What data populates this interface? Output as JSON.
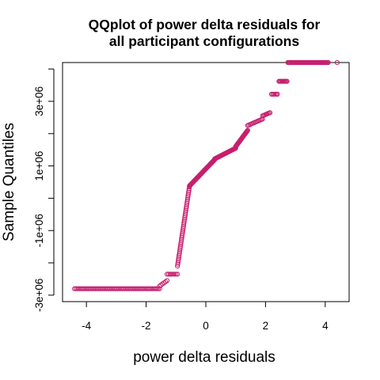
{
  "chart_data": {
    "type": "scatter",
    "title_line1": "QQplot of power delta residuals for",
    "title_line2": "all participant configurations",
    "xlabel": "power delta residuals",
    "ylabel": "Sample Quantiles",
    "xlim": [
      -4.8,
      4.8
    ],
    "ylim": [
      -3200000.0,
      4200000.0
    ],
    "x_ticks": [
      {
        "value": -4,
        "label": "-4"
      },
      {
        "value": -2,
        "label": "-2"
      },
      {
        "value": 0,
        "label": "0"
      },
      {
        "value": 2,
        "label": "2"
      },
      {
        "value": 4,
        "label": "4"
      }
    ],
    "y_ticks": [
      {
        "value": -3000000,
        "label": "-3e+06"
      },
      {
        "value": -1000000,
        "label": "-1e+06"
      },
      {
        "value": 1000000,
        "label": "1e+06"
      },
      {
        "value": 3000000,
        "label": "3e+06"
      }
    ],
    "y_minor_ticks": [
      -2000000,
      0,
      2000000,
      4000000
    ],
    "grid": false,
    "legend": "none",
    "marker": "open-circle",
    "point_color": "#c71f6e",
    "segments": [
      {
        "x_start": -4.4,
        "x_end": -1.55,
        "y_start": -2800000.0,
        "y_end": -2800000.0,
        "n": 60
      },
      {
        "x_start": -1.55,
        "x_end": -1.3,
        "y_start": -2720000.0,
        "y_end": -2550000.0,
        "n": 6
      },
      {
        "x_start": -1.3,
        "x_end": -0.95,
        "y_start": -2350000.0,
        "y_end": -2350000.0,
        "n": 8
      },
      {
        "x_start": -0.95,
        "x_end": -0.55,
        "y_start": -2100000.0,
        "y_end": 350000.0,
        "n": 45
      },
      {
        "x_start": -0.55,
        "x_end": 0.3,
        "y_start": 380000.0,
        "y_end": 1200000.0,
        "n": 60
      },
      {
        "x_start": 0.3,
        "x_end": 1.0,
        "y_start": 1220000.0,
        "y_end": 1550000.0,
        "n": 40
      },
      {
        "x_start": 1.0,
        "x_end": 1.4,
        "y_start": 1600000.0,
        "y_end": 2100000.0,
        "n": 30
      },
      {
        "x_start": 1.4,
        "x_end": 1.9,
        "y_start": 2250000.0,
        "y_end": 2450000.0,
        "n": 14
      },
      {
        "x_start": 1.9,
        "x_end": 2.15,
        "y_start": 2550000.0,
        "y_end": 2650000.0,
        "n": 8
      },
      {
        "x_start": 2.2,
        "x_end": 2.4,
        "y_start": 3220000.0,
        "y_end": 3220000.0,
        "n": 6
      },
      {
        "x_start": 2.45,
        "x_end": 2.72,
        "y_start": 3620000.0,
        "y_end": 3620000.0,
        "n": 10
      },
      {
        "x_start": 2.75,
        "x_end": 4.1,
        "y_start": 4200000.0,
        "y_end": 4200000.0,
        "n": 45
      },
      {
        "x_start": 4.4,
        "x_end": 4.4,
        "y_start": 4200000.0,
        "y_end": 4200000.0,
        "n": 1
      }
    ]
  }
}
